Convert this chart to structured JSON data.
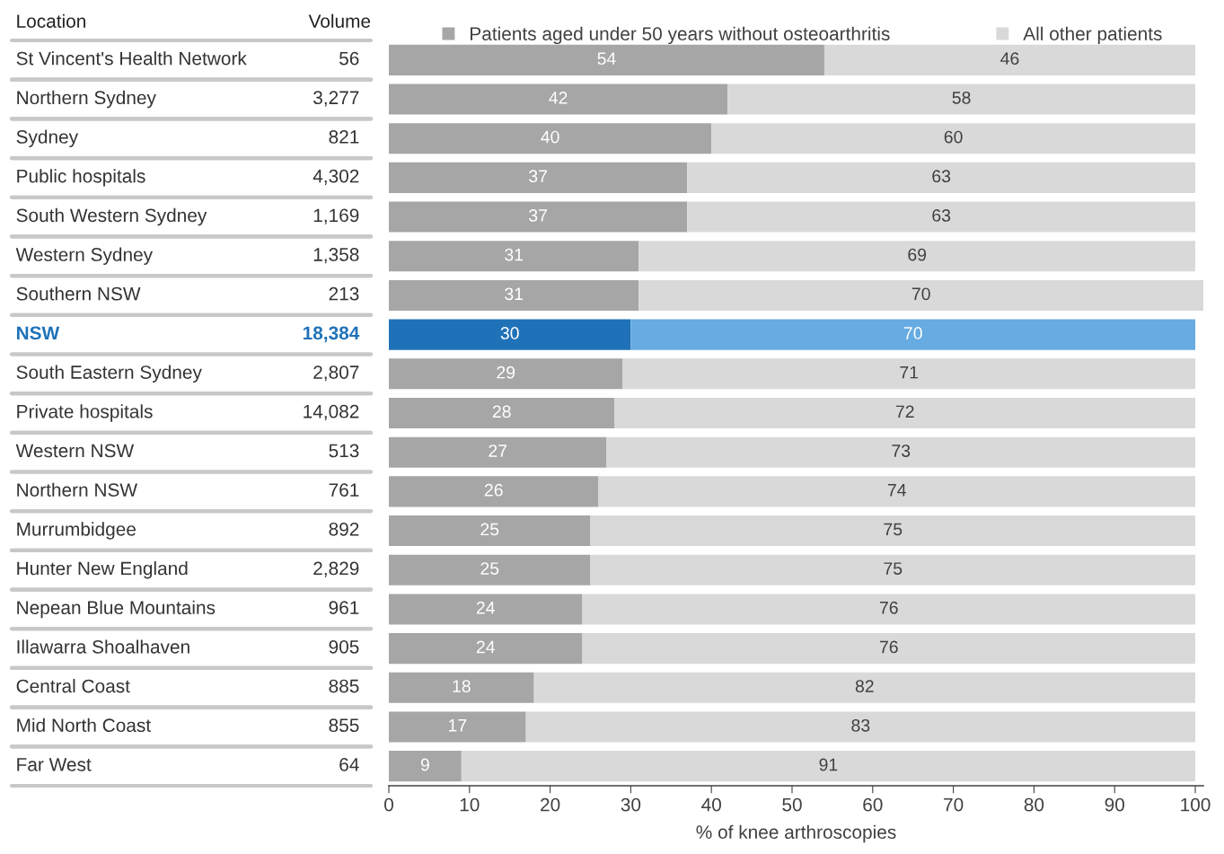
{
  "chart_data": {
    "type": "bar",
    "orientation": "horizontal",
    "stacked": true,
    "ylabel": "Location",
    "y2label": "Volume",
    "xlabel": "% of knee arthroscopies",
    "categories": [
      "St Vincent's Health Network",
      "Northern Sydney",
      "Sydney",
      "Public hospitals",
      "South Western Sydney",
      "Western Sydney",
      "Southern NSW",
      "NSW",
      "South Eastern Sydney",
      "Private hospitals",
      "Western NSW",
      "Northern NSW",
      "Murrumbidgee",
      "Hunter New England",
      "Nepean Blue Mountains",
      "Illawarra Shoalhaven",
      "Central Coast",
      "Mid North Coast",
      "Far West"
    ],
    "y2_categories": [
      "56",
      "3,277",
      "821",
      "4,302",
      "1,169",
      "1,358",
      "213",
      "18,384",
      "2,807",
      "14,082",
      "513",
      "761",
      "892",
      "2,829",
      "961",
      "905",
      "885",
      "855",
      "64"
    ],
    "series": [
      {
        "name": "Patients aged under 50 years without osteoarthritis",
        "color": "#a6a6a6",
        "colors": [
          "#a6a6a6",
          "#a6a6a6",
          "#a6a6a6",
          "#a6a6a6",
          "#a6a6a6",
          "#a6a6a6",
          "#a6a6a6",
          "#1f72b8",
          "#a6a6a6",
          "#a6a6a6",
          "#a6a6a6",
          "#a6a6a6",
          "#a6a6a6",
          "#a6a6a6",
          "#a6a6a6",
          "#a6a6a6",
          "#a6a6a6",
          "#a6a6a6",
          "#a6a6a6"
        ],
        "values": [
          54,
          42,
          40,
          37,
          37,
          31,
          31,
          30,
          29,
          28,
          27,
          26,
          25,
          25,
          24,
          24,
          18,
          17,
          9
        ]
      },
      {
        "name": "All other patients",
        "color": "#d9d9d9",
        "colors": [
          "#d9d9d9",
          "#d9d9d9",
          "#d9d9d9",
          "#d9d9d9",
          "#d9d9d9",
          "#d9d9d9",
          "#d9d9d9",
          "#66abe2",
          "#d9d9d9",
          "#d9d9d9",
          "#d9d9d9",
          "#d9d9d9",
          "#d9d9d9",
          "#d9d9d9",
          "#d9d9d9",
          "#d9d9d9",
          "#d9d9d9",
          "#d9d9d9",
          "#d9d9d9"
        ],
        "values": [
          46,
          58,
          60,
          63,
          63,
          69,
          70,
          70,
          71,
          72,
          73,
          74,
          75,
          75,
          76,
          76,
          82,
          83,
          91
        ]
      }
    ],
    "data_labels": true,
    "xlim": [
      0,
      101
    ],
    "xticks": [
      0,
      10,
      20,
      30,
      40,
      50,
      60,
      70,
      80,
      90,
      100
    ],
    "grid": false,
    "legend": "top"
  }
}
